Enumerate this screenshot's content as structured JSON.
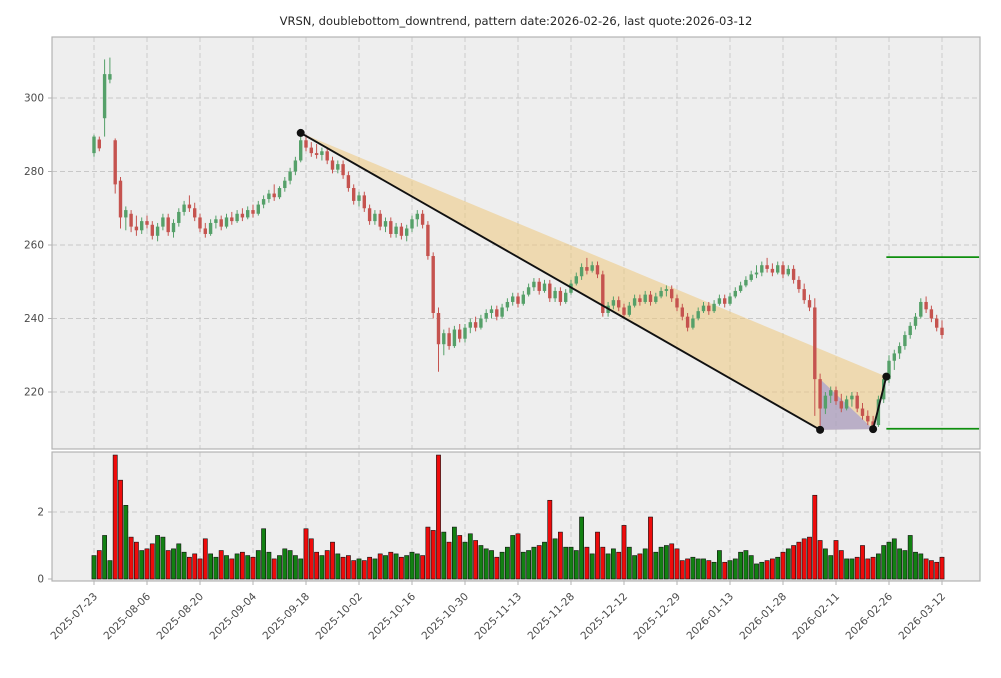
{
  "chart_data": {
    "type": "candlestick",
    "title": "VRSN, doublebottom_downtrend, pattern date:2026-02-26, last quote:2026-03-12",
    "symbol": "VRSN",
    "pattern_name": "doublebottom_downtrend",
    "pattern_date": "2026-02-26",
    "last_quote_date": "2026-03-12",
    "legend_position": "none",
    "grid": true,
    "x_tick_step": 10,
    "x_tick_labels": [
      "2025-07-23",
      "2025-08-06",
      "2025-08-20",
      "2025-09-04",
      "2025-09-18",
      "2025-10-02",
      "2025-10-16",
      "2025-10-30",
      "2025-11-13",
      "2025-11-28",
      "2025-12-12",
      "2025-12-29",
      "2026-01-13",
      "2026-01-28",
      "2026-02-11",
      "2026-02-26",
      "2026-03-12"
    ],
    "price_axis": {
      "tick_labels": [
        "220",
        "240",
        "260",
        "280",
        "300"
      ],
      "ticks": [
        220,
        240,
        260,
        280,
        300
      ],
      "range": [
        204.5,
        316.5
      ]
    },
    "volume_axis": {
      "tick_labels": [
        "0",
        "2"
      ],
      "ticks": [
        0,
        2
      ],
      "range": [
        0,
        3.85
      ]
    },
    "candles_ohlc": [
      [
        285.0,
        290.0,
        284.0,
        289.5
      ],
      [
        288.7,
        289.5,
        285.5,
        286.3
      ],
      [
        294.5,
        310.5,
        289.5,
        306.5
      ],
      [
        305.0,
        311.0,
        304.0,
        306.5
      ],
      [
        288.5,
        289.0,
        274.0,
        276.5
      ],
      [
        277.5,
        278.5,
        264.5,
        267.5
      ],
      [
        267.5,
        270.5,
        264.0,
        269.5
      ],
      [
        268.5,
        269.5,
        263.5,
        265.0
      ],
      [
        265.0,
        268.0,
        262.5,
        264.0
      ],
      [
        264.0,
        267.5,
        263.0,
        266.5
      ],
      [
        266.5,
        268.0,
        264.5,
        265.5
      ],
      [
        265.5,
        266.5,
        261.5,
        262.5
      ],
      [
        262.5,
        266.0,
        261.0,
        265.0
      ],
      [
        265.0,
        268.5,
        264.0,
        267.5
      ],
      [
        267.5,
        268.5,
        262.5,
        263.5
      ],
      [
        263.5,
        267.0,
        262.0,
        266.0
      ],
      [
        266.0,
        270.0,
        265.0,
        269.0
      ],
      [
        269.0,
        272.0,
        268.0,
        271.0
      ],
      [
        271.0,
        273.5,
        269.0,
        270.0
      ],
      [
        270.0,
        271.5,
        266.5,
        267.5
      ],
      [
        267.5,
        268.5,
        263.5,
        264.5
      ],
      [
        264.5,
        266.0,
        262.0,
        263.0
      ],
      [
        263.0,
        267.0,
        262.5,
        266.0
      ],
      [
        266.0,
        268.0,
        264.5,
        267.0
      ],
      [
        267.0,
        268.0,
        264.0,
        265.0
      ],
      [
        265.0,
        268.5,
        264.5,
        267.5
      ],
      [
        267.5,
        269.0,
        265.5,
        266.5
      ],
      [
        266.5,
        269.5,
        266.0,
        268.5
      ],
      [
        268.5,
        270.0,
        266.5,
        267.5
      ],
      [
        267.5,
        270.5,
        267.0,
        269.5
      ],
      [
        269.5,
        271.0,
        267.5,
        268.5
      ],
      [
        268.5,
        272.0,
        268.0,
        271.0
      ],
      [
        271.0,
        273.5,
        270.0,
        272.5
      ],
      [
        272.5,
        275.0,
        271.5,
        274.0
      ],
      [
        274.0,
        276.5,
        272.0,
        273.0
      ],
      [
        273.0,
        276.0,
        272.5,
        275.5
      ],
      [
        275.5,
        278.5,
        274.5,
        277.5
      ],
      [
        277.5,
        281.0,
        276.5,
        280.0
      ],
      [
        280.0,
        284.0,
        279.0,
        283.0
      ],
      [
        283.0,
        290.5,
        282.5,
        288.5
      ],
      [
        288.5,
        290.0,
        285.5,
        286.5
      ],
      [
        286.5,
        288.0,
        284.0,
        285.0
      ],
      [
        285.0,
        287.5,
        283.5,
        284.5
      ],
      [
        284.5,
        286.5,
        283.0,
        285.5
      ],
      [
        285.5,
        286.5,
        282.0,
        283.0
      ],
      [
        283.0,
        284.0,
        279.5,
        280.5
      ],
      [
        280.5,
        283.0,
        279.5,
        282.0
      ],
      [
        282.0,
        283.0,
        278.0,
        279.0
      ],
      [
        279.0,
        280.0,
        274.5,
        275.5
      ],
      [
        275.5,
        276.5,
        271.0,
        272.0
      ],
      [
        272.0,
        274.5,
        270.5,
        273.5
      ],
      [
        273.5,
        274.5,
        269.0,
        270.0
      ],
      [
        270.0,
        271.0,
        265.5,
        266.5
      ],
      [
        266.5,
        269.5,
        265.5,
        268.5
      ],
      [
        268.5,
        269.5,
        264.0,
        265.0
      ],
      [
        265.0,
        267.5,
        263.5,
        266.5
      ],
      [
        266.5,
        267.5,
        262.0,
        263.0
      ],
      [
        263.0,
        266.0,
        262.0,
        265.0
      ],
      [
        265.0,
        266.0,
        261.5,
        262.5
      ],
      [
        262.5,
        265.5,
        261.0,
        264.5
      ],
      [
        264.5,
        268.0,
        263.5,
        267.0
      ],
      [
        267.0,
        269.5,
        265.0,
        268.5
      ],
      [
        268.5,
        269.5,
        264.5,
        265.5
      ],
      [
        265.5,
        266.5,
        256.0,
        257.0
      ],
      [
        257.0,
        258.0,
        240.0,
        241.5
      ],
      [
        241.5,
        243.0,
        225.5,
        233.0
      ],
      [
        233.0,
        237.0,
        230.0,
        236.0
      ],
      [
        236.0,
        237.5,
        231.5,
        232.5
      ],
      [
        232.5,
        238.0,
        232.0,
        237.0
      ],
      [
        237.0,
        238.5,
        233.5,
        234.5
      ],
      [
        234.5,
        238.5,
        233.5,
        237.5
      ],
      [
        237.5,
        240.0,
        236.0,
        239.0
      ],
      [
        239.0,
        240.5,
        236.5,
        237.5
      ],
      [
        237.5,
        241.0,
        237.0,
        240.0
      ],
      [
        240.0,
        242.5,
        239.0,
        241.5
      ],
      [
        241.5,
        243.5,
        240.0,
        242.5
      ],
      [
        242.5,
        243.5,
        239.5,
        240.5
      ],
      [
        240.5,
        244.0,
        240.0,
        243.0
      ],
      [
        243.0,
        245.5,
        242.0,
        244.5
      ],
      [
        244.5,
        247.0,
        243.5,
        246.0
      ],
      [
        246.0,
        247.0,
        243.0,
        244.0
      ],
      [
        244.0,
        247.5,
        243.5,
        246.5
      ],
      [
        246.5,
        249.5,
        246.0,
        248.5
      ],
      [
        248.5,
        251.0,
        247.5,
        250.0
      ],
      [
        250.0,
        251.0,
        246.5,
        247.5
      ],
      [
        247.5,
        250.5,
        247.0,
        249.5
      ],
      [
        249.5,
        250.5,
        244.5,
        245.5
      ],
      [
        245.5,
        248.5,
        244.5,
        247.5
      ],
      [
        247.5,
        248.5,
        243.5,
        244.5
      ],
      [
        244.5,
        248.0,
        244.0,
        247.0
      ],
      [
        247.0,
        250.5,
        246.5,
        249.5
      ],
      [
        249.5,
        252.5,
        249.0,
        251.5
      ],
      [
        251.5,
        255.0,
        250.5,
        254.0
      ],
      [
        254.0,
        256.5,
        252.0,
        253.0
      ],
      [
        253.0,
        255.5,
        252.5,
        254.5
      ],
      [
        254.5,
        255.5,
        251.0,
        252.0
      ],
      [
        252.0,
        253.0,
        240.5,
        241.5
      ],
      [
        241.5,
        244.5,
        240.5,
        243.5
      ],
      [
        243.5,
        246.0,
        242.5,
        245.0
      ],
      [
        245.0,
        246.0,
        242.0,
        243.0
      ],
      [
        243.0,
        244.0,
        240.0,
        241.0
      ],
      [
        241.0,
        244.5,
        240.5,
        243.5
      ],
      [
        243.5,
        246.5,
        243.0,
        245.5
      ],
      [
        245.5,
        246.5,
        243.5,
        244.5
      ],
      [
        244.5,
        247.5,
        244.0,
        246.5
      ],
      [
        246.5,
        247.5,
        243.5,
        244.5
      ],
      [
        244.5,
        247.0,
        244.0,
        246.0
      ],
      [
        246.0,
        248.5,
        245.5,
        247.5
      ],
      [
        247.5,
        249.0,
        246.0,
        248.0
      ],
      [
        248.0,
        249.0,
        244.5,
        245.5
      ],
      [
        245.5,
        246.5,
        242.0,
        243.0
      ],
      [
        243.0,
        244.0,
        239.5,
        240.5
      ],
      [
        240.5,
        241.5,
        236.5,
        237.5
      ],
      [
        237.5,
        241.0,
        237.0,
        240.0
      ],
      [
        240.0,
        243.0,
        239.5,
        242.0
      ],
      [
        242.0,
        244.5,
        241.5,
        243.5
      ],
      [
        243.5,
        244.5,
        241.0,
        242.0
      ],
      [
        242.0,
        245.0,
        241.5,
        244.0
      ],
      [
        244.0,
        246.5,
        243.5,
        245.5
      ],
      [
        245.5,
        246.5,
        243.0,
        244.0
      ],
      [
        244.0,
        247.0,
        243.5,
        246.0
      ],
      [
        246.0,
        248.5,
        245.5,
        247.5
      ],
      [
        247.5,
        250.0,
        247.0,
        249.0
      ],
      [
        249.0,
        251.5,
        248.5,
        250.5
      ],
      [
        250.5,
        253.0,
        250.0,
        252.0
      ],
      [
        252.0,
        254.5,
        251.0,
        252.5
      ],
      [
        252.5,
        255.5,
        251.5,
        254.5
      ],
      [
        254.5,
        256.5,
        252.5,
        253.5
      ],
      [
        253.5,
        255.0,
        251.5,
        252.5
      ],
      [
        252.5,
        255.5,
        252.0,
        254.5
      ],
      [
        254.5,
        255.5,
        251.0,
        252.0
      ],
      [
        252.0,
        254.5,
        251.5,
        253.5
      ],
      [
        253.5,
        254.5,
        249.5,
        250.5
      ],
      [
        250.5,
        251.5,
        247.0,
        248.0
      ],
      [
        248.0,
        249.5,
        244.0,
        245.0
      ],
      [
        245.0,
        246.5,
        242.0,
        243.0
      ],
      [
        243.0,
        245.5,
        213.5,
        223.5
      ],
      [
        223.5,
        225.0,
        209.7,
        215.5
      ],
      [
        215.5,
        220.0,
        214.0,
        219.0
      ],
      [
        219.0,
        221.5,
        217.0,
        220.5
      ],
      [
        220.5,
        221.5,
        216.5,
        217.5
      ],
      [
        217.5,
        219.5,
        214.5,
        215.5
      ],
      [
        215.5,
        219.0,
        215.0,
        218.0
      ],
      [
        218.0,
        220.0,
        216.0,
        219.0
      ],
      [
        219.0,
        220.0,
        214.5,
        215.5
      ],
      [
        215.5,
        217.0,
        212.5,
        213.5
      ],
      [
        213.5,
        215.0,
        211.0,
        212.0
      ],
      [
        212.0,
        213.5,
        209.9,
        211.0
      ],
      [
        211.0,
        219.0,
        210.5,
        218.0
      ],
      [
        218.0,
        224.5,
        217.0,
        223.5
      ],
      [
        223.5,
        230.0,
        222.5,
        228.5
      ],
      [
        228.5,
        231.5,
        226.0,
        230.5
      ],
      [
        230.5,
        233.5,
        229.0,
        232.5
      ],
      [
        232.5,
        236.5,
        231.5,
        235.5
      ],
      [
        235.5,
        239.0,
        234.5,
        238.0
      ],
      [
        238.0,
        241.5,
        237.0,
        240.5
      ],
      [
        240.5,
        245.5,
        240.0,
        244.5
      ],
      [
        244.5,
        246.0,
        241.5,
        242.5
      ],
      [
        242.5,
        243.5,
        239.0,
        240.0
      ],
      [
        240.0,
        241.0,
        236.5,
        237.5
      ],
      [
        237.5,
        239.5,
        234.5,
        235.5
      ]
    ],
    "volumes": [
      0.7,
      0.85,
      1.3,
      0.55,
      3.7,
      2.95,
      2.2,
      1.25,
      1.1,
      0.85,
      0.9,
      1.05,
      1.3,
      1.25,
      0.85,
      0.9,
      1.05,
      0.8,
      0.65,
      0.75,
      0.6,
      1.2,
      0.75,
      0.65,
      0.85,
      0.7,
      0.6,
      0.75,
      0.8,
      0.7,
      0.65,
      0.85,
      1.5,
      0.8,
      0.6,
      0.7,
      0.9,
      0.85,
      0.7,
      0.6,
      1.5,
      1.2,
      0.8,
      0.7,
      0.85,
      1.1,
      0.75,
      0.65,
      0.7,
      0.55,
      0.6,
      0.55,
      0.65,
      0.6,
      0.75,
      0.7,
      0.8,
      0.75,
      0.65,
      0.7,
      0.8,
      0.75,
      0.7,
      1.55,
      1.45,
      3.7,
      1.4,
      1.1,
      1.55,
      1.3,
      1.1,
      1.35,
      1.15,
      1.0,
      0.9,
      0.85,
      0.65,
      0.8,
      0.95,
      1.3,
      1.35,
      0.8,
      0.85,
      0.95,
      1.0,
      1.1,
      2.35,
      1.2,
      1.4,
      0.95,
      0.95,
      0.85,
      1.85,
      0.95,
      0.75,
      1.4,
      0.95,
      0.75,
      0.9,
      0.8,
      1.6,
      0.95,
      0.7,
      0.75,
      0.9,
      1.85,
      0.8,
      0.95,
      1.0,
      1.05,
      0.9,
      0.55,
      0.6,
      0.65,
      0.6,
      0.6,
      0.55,
      0.5,
      0.85,
      0.5,
      0.55,
      0.6,
      0.8,
      0.85,
      0.7,
      0.45,
      0.5,
      0.55,
      0.6,
      0.65,
      0.8,
      0.9,
      1.0,
      1.1,
      1.2,
      1.25,
      2.5,
      1.15,
      0.9,
      0.7,
      1.15,
      0.85,
      0.6,
      0.6,
      0.65,
      1.0,
      0.6,
      0.65,
      0.75,
      1.0,
      1.1,
      1.2,
      0.9,
      0.85,
      1.3,
      0.8,
      0.75,
      0.6,
      0.55,
      0.5,
      0.65
    ],
    "overlays": {
      "trend_segments": [
        {
          "from": {
            "index": 39,
            "price": 290.5
          },
          "to": {
            "index": 137,
            "price": 209.7
          }
        },
        {
          "from": {
            "index": 147,
            "price": 209.9
          },
          "to": {
            "index": 149.5,
            "price": 224.2
          }
        }
      ],
      "marker_dots": [
        {
          "index": 39,
          "price": 290.5,
          "label": "downtrend-start"
        },
        {
          "index": 137,
          "price": 209.7,
          "label": "first-bottom"
        },
        {
          "index": 147,
          "price": 209.9,
          "label": "second-bottom"
        },
        {
          "index": 149.5,
          "price": 224.2,
          "label": "breakout"
        }
      ],
      "channel_polygon": [
        [
          39,
          290.5
        ],
        [
          149.5,
          224.2
        ],
        [
          147,
          209.9
        ],
        [
          137,
          209.7
        ]
      ],
      "pattern_polygon": [
        [
          137,
          223.5
        ],
        [
          137,
          209.7
        ],
        [
          147,
          209.9
        ]
      ],
      "target_line": {
        "price": 256.7,
        "from_index": 149.5,
        "to_index": 167
      },
      "stop_line": {
        "price": 210.0,
        "from_index": 149.5,
        "to_index": 167
      }
    },
    "colors": {
      "candle_up": "#55a069",
      "candle_down": "#c5534f",
      "volume_up": "#128112",
      "volume_down": "#ee0b0b",
      "volume_edge": "#111111",
      "panel_bg": "#eeeeee",
      "figure_bg": "#ffffff",
      "grid": "#c8c8c8",
      "spine": "#b3b3b3",
      "channel_fill": "#efc87e",
      "pattern_fill": "#8585dd",
      "trend_line": "#111111",
      "target_line_color": "#0e8f0e",
      "tick_text": "#4a4a4a",
      "title_text": "#262626"
    }
  }
}
